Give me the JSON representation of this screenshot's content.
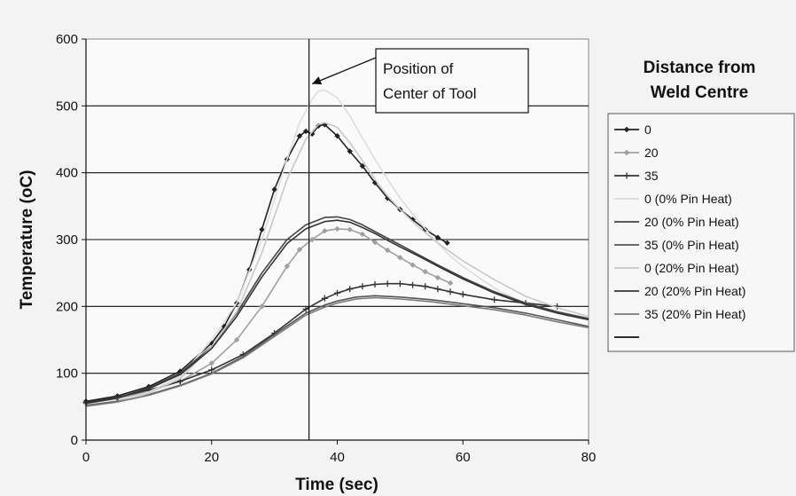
{
  "chart_data": {
    "type": "line",
    "title": "",
    "xlabel": "Time (sec)",
    "ylabel": "Temperature (oC)",
    "xlim": [
      0,
      80
    ],
    "ylim": [
      0,
      600
    ],
    "xticks": [
      0,
      20,
      40,
      60,
      80
    ],
    "yticks": [
      0,
      100,
      200,
      300,
      400,
      500,
      600
    ],
    "grid": "horizontal",
    "legend": {
      "title_lines": [
        "Distance from",
        "Weld Centre"
      ],
      "placement": "right",
      "extra_entry": ""
    },
    "annotation": {
      "text_lines": [
        "Position of",
        "Center of Tool"
      ],
      "vline_x": 35.5,
      "arrow_to": [
        36,
        525
      ]
    },
    "series": [
      {
        "name": "0",
        "color": "#222222",
        "marker": "diamond",
        "x": [
          0,
          5,
          10,
          15,
          20,
          22,
          24,
          26,
          28,
          30,
          32,
          34,
          35,
          36,
          37,
          38,
          40,
          42,
          44,
          46,
          48,
          50,
          52,
          54,
          56,
          57.5
        ],
        "y": [
          58,
          66,
          80,
          103,
          145,
          170,
          205,
          255,
          315,
          375,
          420,
          455,
          462,
          458,
          470,
          472,
          455,
          432,
          410,
          385,
          362,
          345,
          330,
          315,
          303,
          295
        ]
      },
      {
        "name": "20",
        "color": "#a0a0a0",
        "marker": "diamond",
        "x": [
          0,
          5,
          10,
          15,
          20,
          24,
          28,
          32,
          34,
          36,
          38,
          40,
          42,
          44,
          46,
          48,
          50,
          52,
          54,
          56,
          58
        ],
        "y": [
          55,
          62,
          73,
          88,
          115,
          150,
          200,
          260,
          285,
          300,
          313,
          316,
          315,
          308,
          296,
          284,
          273,
          262,
          252,
          243,
          235
        ]
      },
      {
        "name": "35",
        "color": "#333333",
        "marker": "plus",
        "x": [
          0,
          5,
          10,
          15,
          20,
          25,
          30,
          35,
          38,
          40,
          42,
          44,
          46,
          48,
          50,
          52,
          54,
          56,
          58,
          60,
          65,
          70,
          75
        ],
        "y": [
          56,
          64,
          75,
          88,
          105,
          128,
          160,
          196,
          212,
          220,
          226,
          230,
          233,
          234,
          234,
          232,
          230,
          226,
          222,
          218,
          210,
          205,
          200
        ]
      },
      {
        "name": "0 (0% Pin Heat)",
        "color": "#dddddd",
        "marker": "none",
        "x": [
          0,
          5,
          10,
          15,
          20,
          24,
          28,
          30,
          32,
          34,
          36,
          37,
          38,
          40,
          42,
          44,
          46,
          48,
          50,
          52,
          55,
          58,
          60,
          63,
          66,
          70,
          75,
          80
        ],
        "y": [
          50,
          58,
          72,
          95,
          150,
          205,
          300,
          360,
          420,
          475,
          510,
          522,
          524,
          512,
          485,
          452,
          420,
          390,
          362,
          338,
          305,
          275,
          260,
          240,
          222,
          205,
          192,
          182
        ]
      },
      {
        "name": "20 (0% Pin Heat)",
        "color": "#444444",
        "marker": "none",
        "x": [
          0,
          5,
          10,
          15,
          20,
          24,
          28,
          32,
          35,
          38,
          40,
          42,
          44,
          46,
          48,
          50,
          53,
          56,
          60,
          65,
          70,
          75,
          80
        ],
        "y": [
          55,
          63,
          78,
          100,
          140,
          190,
          250,
          300,
          322,
          333,
          334,
          330,
          322,
          312,
          302,
          292,
          277,
          262,
          243,
          222,
          205,
          192,
          182
        ]
      },
      {
        "name": "35 (0% Pin Heat)",
        "color": "#555555",
        "marker": "none",
        "x": [
          0,
          5,
          10,
          15,
          20,
          25,
          30,
          35,
          38,
          40,
          43,
          46,
          50,
          55,
          60,
          65,
          70,
          75,
          80
        ],
        "y": [
          52,
          58,
          68,
          82,
          100,
          125,
          158,
          190,
          202,
          208,
          214,
          216,
          214,
          210,
          204,
          198,
          190,
          180,
          170
        ]
      },
      {
        "name": "0 (20% Pin Heat)",
        "color": "#c8c8c8",
        "marker": "none",
        "x": [
          0,
          5,
          10,
          15,
          20,
          24,
          28,
          32,
          35,
          37,
          38,
          40,
          42,
          44,
          46,
          48,
          50,
          53,
          56,
          60,
          65,
          70,
          75,
          80
        ],
        "y": [
          50,
          57,
          70,
          92,
          140,
          192,
          280,
          390,
          450,
          472,
          475,
          468,
          445,
          418,
          390,
          365,
          345,
          318,
          295,
          268,
          240,
          215,
          198,
          185
        ]
      },
      {
        "name": "20 (20% Pin Heat)",
        "color": "#333333",
        "marker": "none",
        "x": [
          0,
          5,
          10,
          15,
          20,
          24,
          28,
          32,
          35,
          38,
          40,
          42,
          44,
          46,
          48,
          50,
          53,
          56,
          60,
          65,
          70,
          75,
          80
        ],
        "y": [
          55,
          63,
          77,
          98,
          137,
          185,
          244,
          294,
          316,
          327,
          329,
          326,
          318,
          309,
          299,
          289,
          275,
          260,
          241,
          220,
          203,
          190,
          180
        ]
      },
      {
        "name": "35 (20% Pin Heat)",
        "color": "#7a7a7a",
        "marker": "none",
        "x": [
          0,
          5,
          10,
          15,
          20,
          25,
          30,
          35,
          38,
          40,
          43,
          46,
          50,
          55,
          60,
          65,
          70,
          75,
          80
        ],
        "y": [
          51,
          57,
          67,
          81,
          99,
          123,
          155,
          187,
          199,
          205,
          211,
          213,
          211,
          207,
          201,
          195,
          187,
          177,
          168
        ]
      }
    ]
  }
}
